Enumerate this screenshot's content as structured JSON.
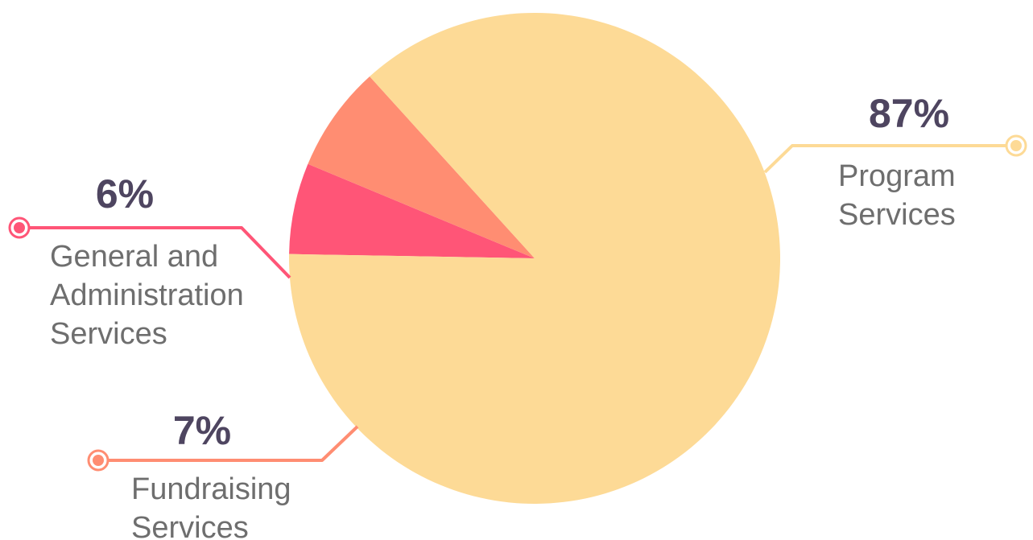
{
  "chart_data": {
    "type": "pie",
    "slices": [
      {
        "label_lines": [
          "General and",
          "Administration",
          "Services"
        ],
        "value": 6,
        "value_label": "6%",
        "color": "#ff5577"
      },
      {
        "label_lines": [
          "Fundraising",
          "Services"
        ],
        "value": 7,
        "value_label": "7%",
        "color": "#ff8d72"
      },
      {
        "label_lines": [
          "Program",
          "Services"
        ],
        "value": 87,
        "value_label": "87%",
        "color": "#fdda96"
      }
    ],
    "value_text_color": "#4e4560",
    "label_text_color": "#6e6e6e",
    "legend": "callouts"
  }
}
